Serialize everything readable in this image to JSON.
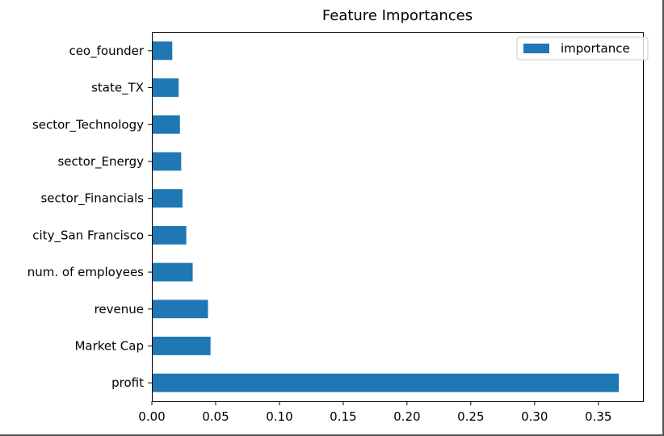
{
  "chart_data": {
    "type": "bar",
    "orientation": "horizontal",
    "title": "Feature Importances",
    "xlabel": "",
    "ylabel": "",
    "categories": [
      "profit",
      "Market Cap",
      "revenue",
      "num. of employees",
      "city_San Francisco",
      "sector_Financials",
      "sector_Energy",
      "sector_Technology",
      "state_TX",
      "ceo_founder"
    ],
    "series": [
      {
        "name": "importance",
        "values": [
          0.366,
          0.046,
          0.044,
          0.032,
          0.027,
          0.024,
          0.023,
          0.022,
          0.021,
          0.016
        ]
      }
    ],
    "xlim": [
      0.0,
      0.385
    ],
    "xticks": [
      "0.00",
      "0.05",
      "0.10",
      "0.15",
      "0.20",
      "0.25",
      "0.30",
      "0.35"
    ],
    "grid": false,
    "legend_position": "top-right",
    "colors": {
      "bar": "#1f77b4",
      "axes": "#000000",
      "background": "#ffffff"
    }
  }
}
